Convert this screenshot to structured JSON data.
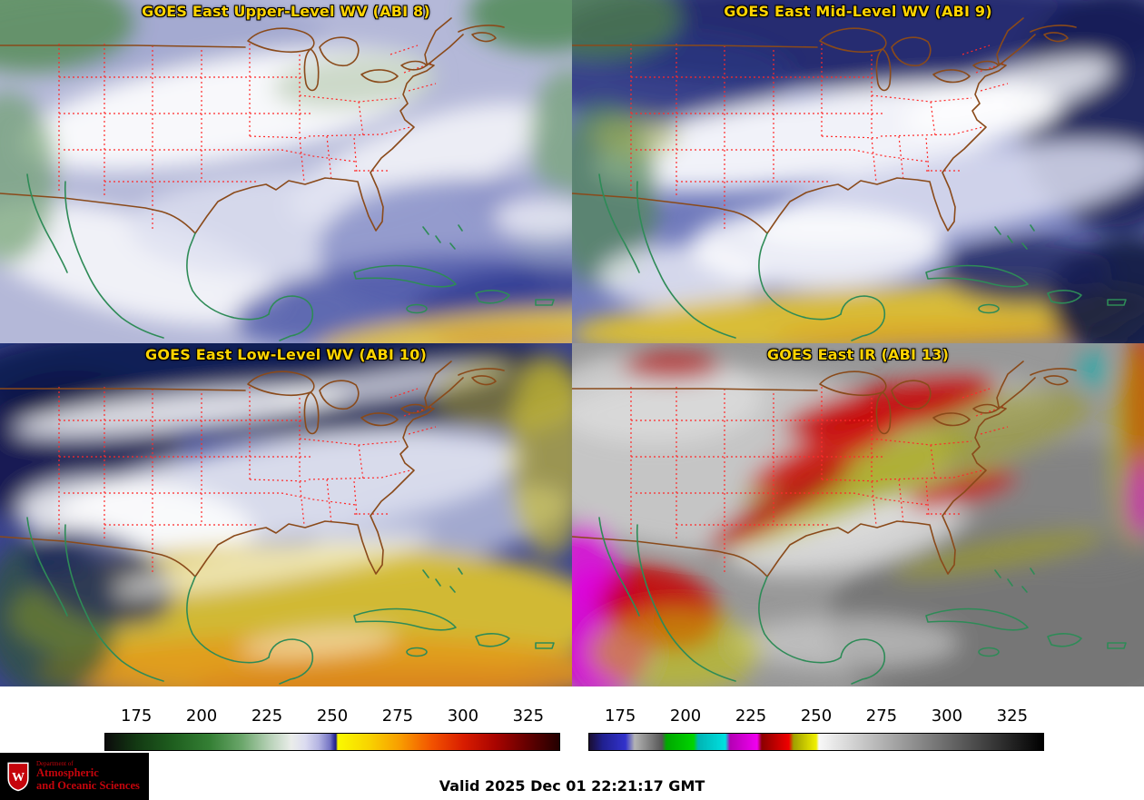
{
  "app": {
    "name": "GOES East four-panel water vapor / IR satellite display"
  },
  "panels": [
    {
      "id": "abi8",
      "title": "GOES East Upper-Level WV (ABI 8)"
    },
    {
      "id": "abi9",
      "title": "GOES East Mid-Level WV (ABI 9)"
    },
    {
      "id": "abi10",
      "title": "GOES East Low-Level WV (ABI 10)"
    },
    {
      "id": "abi13",
      "title": "GOES East IR (ABI 13)"
    }
  ],
  "title_style": {
    "color": "#ffd400",
    "outline": "#000000"
  },
  "map_overlay": {
    "state_borders_color": "#ff2a2a",
    "us_coast_color": "#8a4a1a",
    "international_coast_color": "#2e8b57"
  },
  "colorbars": {
    "left": {
      "label_values": [
        "175",
        "200",
        "225",
        "250",
        "275",
        "300",
        "325"
      ],
      "gradient": [
        [
          0,
          "#0b0b0b"
        ],
        [
          7,
          "#133a13"
        ],
        [
          15,
          "#1f5f1f"
        ],
        [
          23,
          "#347f34"
        ],
        [
          30,
          "#6aa66a"
        ],
        [
          36,
          "#b5d0b5"
        ],
        [
          41,
          "#eaedea"
        ],
        [
          44,
          "#dcdcf0"
        ],
        [
          47,
          "#b4b4e2"
        ],
        [
          49.5,
          "#7474c4"
        ],
        [
          50.3,
          "#3a3aa2"
        ],
        [
          50.8,
          "#1e1e85"
        ],
        [
          51.2,
          "#fafa00"
        ],
        [
          58,
          "#f8d400"
        ],
        [
          65,
          "#f89c00"
        ],
        [
          72,
          "#f25200"
        ],
        [
          79,
          "#d81c00"
        ],
        [
          86,
          "#a80400"
        ],
        [
          93,
          "#640000"
        ],
        [
          100,
          "#230000"
        ]
      ]
    },
    "right": {
      "label_values": [
        "175",
        "200",
        "225",
        "250",
        "275",
        "300",
        "325"
      ],
      "gradient": [
        [
          0,
          "#1a0e32"
        ],
        [
          3,
          "#202090"
        ],
        [
          8,
          "#3232cc"
        ],
        [
          10,
          "#b4b4b4"
        ],
        [
          16,
          "#565656"
        ],
        [
          17,
          "#00a800"
        ],
        [
          23,
          "#00d400"
        ],
        [
          24,
          "#00b4b4"
        ],
        [
          30,
          "#00e0e0"
        ],
        [
          31,
          "#b400b4"
        ],
        [
          37,
          "#f000f0"
        ],
        [
          38,
          "#8c0000"
        ],
        [
          44,
          "#f00000"
        ],
        [
          45,
          "#a0a000"
        ],
        [
          50,
          "#f0f000"
        ],
        [
          50.6,
          "#f8f8f8"
        ],
        [
          100,
          "#000000"
        ]
      ]
    }
  },
  "footer": {
    "valid_label": "Valid 2025 Dec 01 22:21:17 GMT",
    "logo": {
      "department_small": "Department of",
      "department_line1": "Atmospheric",
      "department_line2": "and Oceanic Sciences",
      "crest_letter": "W",
      "brand_color": "#c5050c"
    }
  }
}
